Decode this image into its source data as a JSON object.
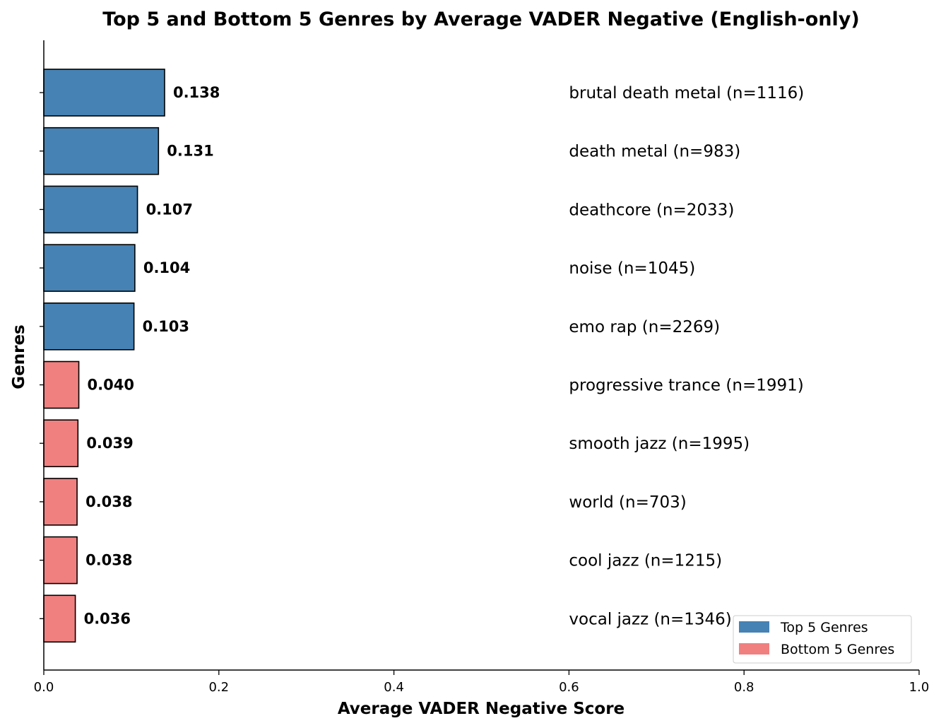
{
  "chart_data": {
    "type": "bar",
    "orientation": "horizontal",
    "title": "Top 5 and Bottom 5 Genres by Average VADER Negative (English-only)",
    "xlabel": "Average VADER Negative Score",
    "ylabel": "Genres",
    "xlim": [
      0.0,
      1.0
    ],
    "xticks": [
      "0.0",
      "0.2",
      "0.4",
      "0.6",
      "0.8",
      "1.0"
    ],
    "label_x": 0.6,
    "grid": false,
    "legend_position": "bottom-right",
    "colors": {
      "top": "#4682b4",
      "bottom": "#f08080",
      "edge": "#000000"
    },
    "series": [
      {
        "name": "Top 5 Genres",
        "group": "top"
      },
      {
        "name": "Bottom 5 Genres",
        "group": "bottom"
      }
    ],
    "bars": [
      {
        "genre_label": "brutal death metal (n=1116)",
        "value": 0.138,
        "value_label": "0.138",
        "group": "top"
      },
      {
        "genre_label": "death metal (n=983)",
        "value": 0.131,
        "value_label": "0.131",
        "group": "top"
      },
      {
        "genre_label": "deathcore (n=2033)",
        "value": 0.107,
        "value_label": "0.107",
        "group": "top"
      },
      {
        "genre_label": "noise (n=1045)",
        "value": 0.104,
        "value_label": "0.104",
        "group": "top"
      },
      {
        "genre_label": "emo rap (n=2269)",
        "value": 0.103,
        "value_label": "0.103",
        "group": "top"
      },
      {
        "genre_label": "progressive trance (n=1991)",
        "value": 0.04,
        "value_label": "0.040",
        "group": "bottom"
      },
      {
        "genre_label": "smooth jazz (n=1995)",
        "value": 0.039,
        "value_label": "0.039",
        "group": "bottom"
      },
      {
        "genre_label": "world (n=703)",
        "value": 0.038,
        "value_label": "0.038",
        "group": "bottom"
      },
      {
        "genre_label": "cool jazz (n=1215)",
        "value": 0.038,
        "value_label": "0.038",
        "group": "bottom"
      },
      {
        "genre_label": "vocal jazz (n=1346)",
        "value": 0.036,
        "value_label": "0.036",
        "group": "bottom"
      }
    ]
  }
}
